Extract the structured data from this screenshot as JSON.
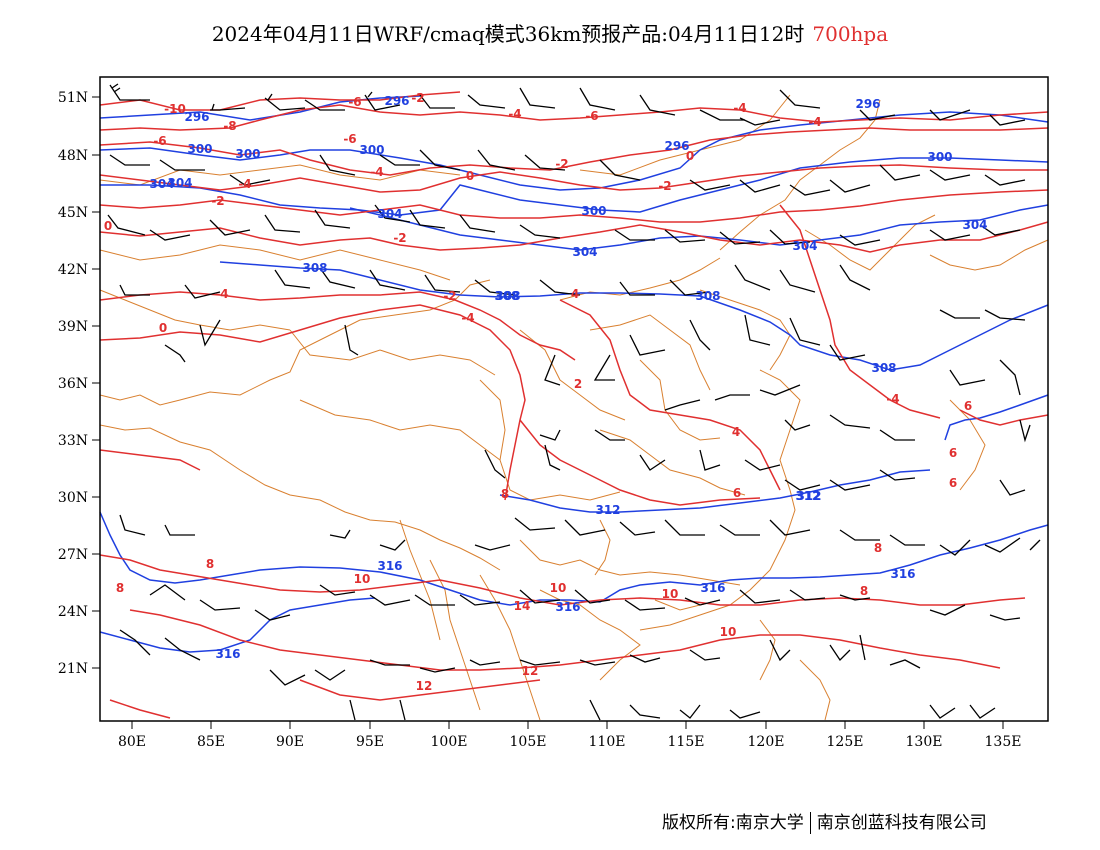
{
  "title": {
    "main": "2024年04月11日WRF/cmaq模式36km预报产品:04月11日12时",
    "level": "700hpa"
  },
  "axes": {
    "lat_labels": [
      "51N",
      "48N",
      "45N",
      "42N",
      "39N",
      "36N",
      "33N",
      "30N",
      "27N",
      "24N",
      "21N"
    ],
    "lon_labels": [
      "80E",
      "85E",
      "90E",
      "95E",
      "100E",
      "105E",
      "110E",
      "115E",
      "120E",
      "125E",
      "130E",
      "135E"
    ]
  },
  "contour_labels": {
    "temperature": [
      "-10",
      "-8",
      "-6",
      "-6",
      "-4",
      "-4",
      "-2",
      "-6",
      "-4",
      "-2",
      "0",
      "0",
      "-2",
      "0",
      "-4",
      "-2",
      "-6",
      "-4",
      "-2",
      "-4",
      "4",
      "-4",
      "-2",
      "0",
      "2",
      "-4",
      "4",
      "6",
      "6",
      "8",
      "6",
      "8",
      "10",
      "10",
      "10",
      "14",
      "12",
      "12",
      "10",
      "8",
      "8",
      "6",
      "8"
    ],
    "geopotential": [
      "296",
      "300",
      "304",
      "300",
      "304",
      "308",
      "300",
      "304",
      "296",
      "304",
      "300",
      "308",
      "308",
      "296",
      "300",
      "304",
      "308",
      "308",
      "312",
      "312",
      "316",
      "316",
      "316",
      "316",
      "316",
      "304",
      "296",
      "312"
    ]
  },
  "colors": {
    "temperature": "#e03030",
    "geopotential": "#2040e0",
    "border": "#d98030",
    "wind": "#000000",
    "frame": "#000000"
  },
  "footer": {
    "left": "版权所有:南京大学",
    "right": "南京创蓝科技有限公司"
  }
}
